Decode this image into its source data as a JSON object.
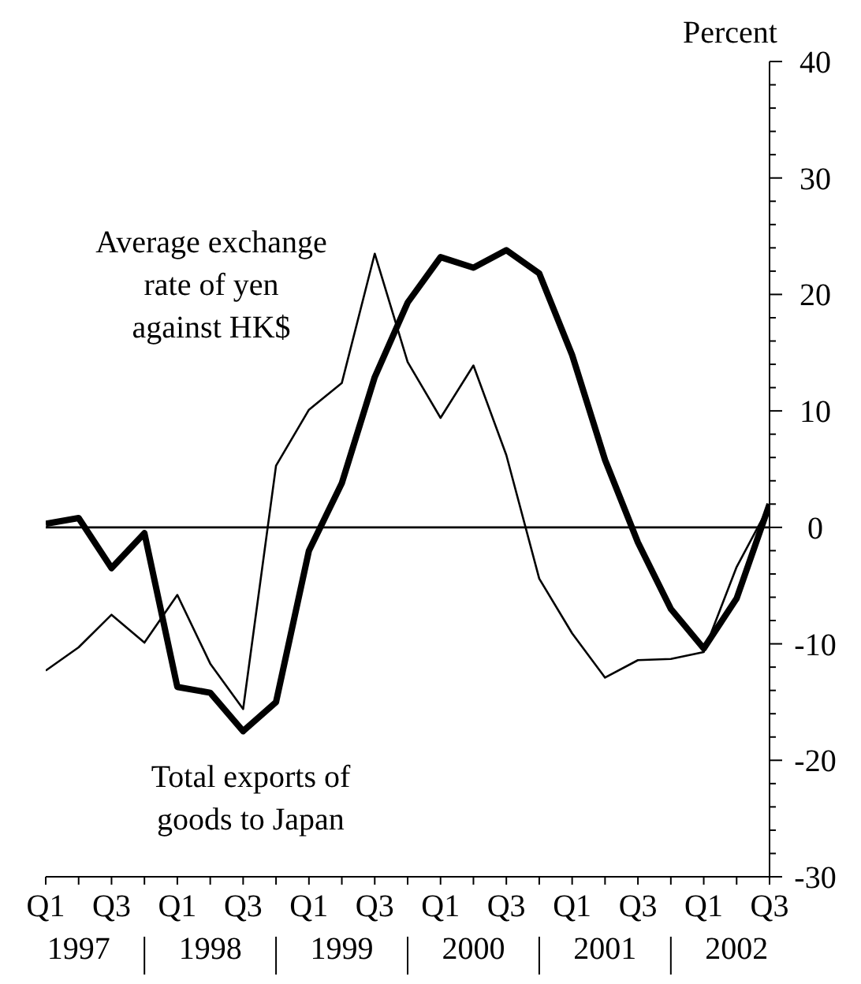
{
  "chart_data": {
    "type": "line",
    "ylabel": "Percent",
    "categories": [
      "Q1",
      null,
      "Q3",
      null,
      "Q1",
      null,
      "Q3",
      null,
      "Q1",
      null,
      "Q3",
      null,
      "Q1",
      null,
      "Q3",
      null,
      "Q1",
      null,
      "Q3",
      null,
      "Q1",
      null,
      "Q3"
    ],
    "series": [
      {
        "color": "#000000",
        "values": [
          0.3,
          0.8,
          -3.5,
          -0.5,
          -13.7,
          -14.2,
          -17.5,
          -15.0,
          -2.0,
          3.8,
          12.9,
          19.3,
          23.2,
          22.3,
          23.8,
          21.8,
          14.8,
          5.8,
          -1.3,
          -7.0,
          -10.4,
          -6.1,
          2.0
        ]
      },
      {
        "color": "#000000",
        "values": [
          -12.3,
          -10.3,
          -7.5,
          -9.9,
          -5.8,
          -11.7,
          -15.6,
          5.3,
          10.1,
          12.4,
          23.5,
          14.2,
          9.4,
          13.9,
          6.2,
          -4.4,
          -9.1,
          -12.9,
          -11.4,
          -11.3,
          -10.7,
          -3.4,
          1.9
        ]
      }
    ],
    "ylim": [
      -30,
      40
    ],
    "yticks": [
      -30,
      {
        "value": -28,
        "label": null
      },
      {
        "value": -26,
        "label": null
      },
      {
        "value": -24,
        "label": null
      },
      {
        "value": -22,
        "label": null
      },
      -20,
      {
        "value": -18,
        "label": null
      },
      {
        "value": -16,
        "label": null
      },
      {
        "value": -14,
        "label": null
      },
      {
        "value": -12,
        "label": null
      },
      -10,
      {
        "value": -8,
        "label": null
      },
      {
        "value": -6,
        "label": null
      },
      {
        "value": -4,
        "label": null
      },
      {
        "value": -2,
        "label": null
      },
      0,
      {
        "value": 2,
        "label": null
      },
      {
        "value": 4,
        "label": null
      },
      {
        "value": 6,
        "label": null
      },
      {
        "value": 8,
        "label": null
      },
      10,
      {
        "value": 12,
        "label": null
      },
      {
        "value": 14,
        "label": null
      },
      {
        "value": 16,
        "label": null
      },
      {
        "value": 18,
        "label": null
      },
      20,
      {
        "value": 22,
        "label": null
      },
      {
        "value": 24,
        "label": null
      },
      {
        "value": 26,
        "label": null
      },
      {
        "value": 28,
        "label": null
      },
      30,
      {
        "value": 32,
        "label": null
      },
      {
        "value": 34,
        "label": null
      },
      {
        "value": 36,
        "label": null
      },
      {
        "value": 38,
        "label": null
      },
      40
    ],
    "ref_lines": [
      {
        "axis": "y",
        "value": 0,
        "color": "#000000"
      }
    ],
    "line_style": "solid",
    "annotations": [
      "Average exchange\nrate of yen\nagainst HK$",
      "Total exports of\ngoods to Japan",
      "1997",
      "1998",
      "1999",
      "2000",
      "2001",
      "2002"
    ]
  }
}
